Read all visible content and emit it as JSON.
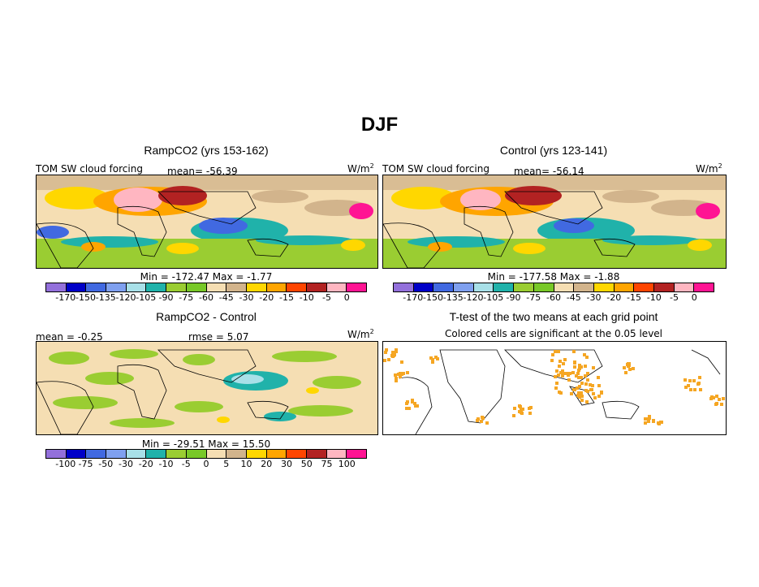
{
  "title": "DJF",
  "panels": [
    {
      "title": "RampCO2 (yrs 153-162)",
      "left_label": "TOM SW cloud forcing",
      "stat_label": "mean= -56.39",
      "units": "W/m",
      "units_sup": "2",
      "minmax": "Min = -172.47 Max = -1.77",
      "colorbar": {
        "labels": [
          "-170",
          "-150",
          "-135",
          "-120",
          "-105",
          "-90",
          "-75",
          "-60",
          "-45",
          "-30",
          "-20",
          "-15",
          "-10",
          "-5",
          "0"
        ],
        "colors": [
          "#9370db",
          "#0000c8",
          "#4169e1",
          "#7fa0ef",
          "#a8e0e8",
          "#20b2aa",
          "#9acd32",
          "#78c828",
          "#f5deb3",
          "#d2b48c",
          "#ffd700",
          "#ffa500",
          "#ff4500",
          "#b22222",
          "#ffb6c1",
          "#ff1493"
        ]
      }
    },
    {
      "title": "Control (yrs 123-141)",
      "left_label": "TOM SW cloud forcing",
      "stat_label": "mean= -56.14",
      "units": "W/m",
      "units_sup": "2",
      "minmax": "Min = -177.58 Max = -1.88",
      "colorbar": {
        "labels": [
          "-170",
          "-150",
          "-135",
          "-120",
          "-105",
          "-90",
          "-75",
          "-60",
          "-45",
          "-30",
          "-20",
          "-15",
          "-10",
          "-5",
          "0"
        ],
        "colors": [
          "#9370db",
          "#0000c8",
          "#4169e1",
          "#7fa0ef",
          "#a8e0e8",
          "#20b2aa",
          "#9acd32",
          "#78c828",
          "#f5deb3",
          "#d2b48c",
          "#ffd700",
          "#ffa500",
          "#ff4500",
          "#b22222",
          "#ffb6c1",
          "#ff1493"
        ]
      }
    },
    {
      "title": "RampCO2 - Control",
      "left_label": "mean = -0.25",
      "stat_label": "rmse = 5.07",
      "units": "W/m",
      "units_sup": "2",
      "minmax": "Min = -29.51 Max = 15.50",
      "colorbar": {
        "labels": [
          "-100",
          "-75",
          "-50",
          "-30",
          "-20",
          "-10",
          "-5",
          "0",
          "5",
          "10",
          "20",
          "30",
          "50",
          "75",
          "100"
        ],
        "colors": [
          "#9370db",
          "#0000c8",
          "#4169e1",
          "#7fa0ef",
          "#a8e0e8",
          "#20b2aa",
          "#9acd32",
          "#78c828",
          "#f5deb3",
          "#d2b48c",
          "#ffd700",
          "#ffa500",
          "#ff4500",
          "#b22222",
          "#ffb6c1",
          "#ff1493"
        ]
      }
    },
    {
      "title": "T-test of the two means at each grid point",
      "subtitle": "Colored cells are significant at the 0.05 level",
      "cell_color": "#f5a623"
    }
  ]
}
